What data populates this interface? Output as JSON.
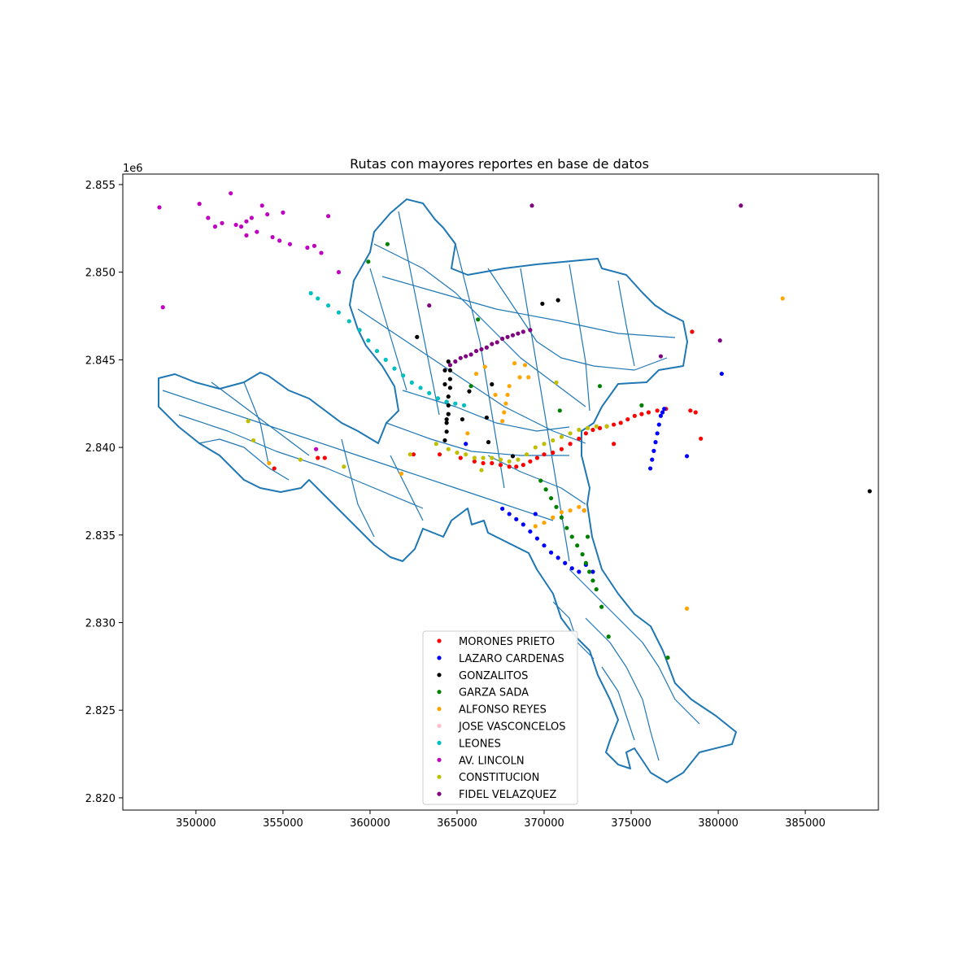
{
  "chart_data": {
    "type": "scatter",
    "title": "Rutas con mayores reportes en base de datos",
    "xlabel": "",
    "ylabel": "",
    "y_offset_label": "1e6",
    "xlim": [
      345800,
      389200
    ],
    "ylim": [
      2.8193,
      2.8556
    ],
    "x_ticks": [
      350000,
      355000,
      360000,
      365000,
      370000,
      375000,
      380000,
      385000
    ],
    "x_tick_labels": [
      "350000",
      "355000",
      "360000",
      "365000",
      "370000",
      "375000",
      "380000",
      "385000"
    ],
    "y_ticks": [
      2.82,
      2.825,
      2.83,
      2.835,
      2.84,
      2.845,
      2.85,
      2.855
    ],
    "y_tick_labels": [
      "2.820",
      "2.825",
      "2.830",
      "2.835",
      "2.840",
      "2.845",
      "2.850",
      "2.855"
    ],
    "grid": false,
    "legend_position": "lower center",
    "background_layer": {
      "name": "street network",
      "color": "#1f77b4"
    },
    "series": [
      {
        "name": "MORONES PRIETO",
        "color": "#ff0000",
        "x": [
          354500,
          357000,
          357400,
          362500,
          364000,
          365200,
          366000,
          366500,
          367000,
          367500,
          368000,
          368400,
          368800,
          369200,
          369600,
          370000,
          370500,
          371000,
          371500,
          372000,
          372400,
          372800,
          373200,
          373600,
          374000,
          374400,
          374800,
          375200,
          375600,
          376000,
          376500,
          377000,
          378400,
          378700,
          379000,
          374000,
          378500,
          372300
        ],
        "y": [
          2.8388,
          2.8394,
          2.8394,
          2.8396,
          2.8396,
          2.8394,
          2.8392,
          2.8391,
          2.8391,
          2.839,
          2.8389,
          2.8389,
          2.839,
          2.8392,
          2.8394,
          2.8396,
          2.8397,
          2.8399,
          2.8402,
          2.8405,
          2.8408,
          2.841,
          2.8411,
          2.8412,
          2.8413,
          2.8414,
          2.8416,
          2.8418,
          2.8419,
          2.842,
          2.8421,
          2.8422,
          2.8421,
          2.842,
          2.8405,
          2.8402,
          2.8466,
          2.8364
        ]
      },
      {
        "name": "LAZARO CARDENAS",
        "color": "#0000ff",
        "x": [
          367600,
          368000,
          368400,
          368800,
          369200,
          369600,
          370000,
          370400,
          370800,
          371200,
          371600,
          372000,
          372400,
          372800,
          376100,
          376200,
          376300,
          376400,
          376500,
          376600,
          376700,
          376800,
          376900,
          378200,
          380200,
          369500,
          365500
        ],
        "y": [
          2.8365,
          2.8362,
          2.8359,
          2.8356,
          2.8352,
          2.8348,
          2.8344,
          2.834,
          2.8337,
          2.8334,
          2.8331,
          2.8329,
          2.8333,
          2.8329,
          2.8388,
          2.8393,
          2.8398,
          2.8403,
          2.8408,
          2.8413,
          2.8418,
          2.842,
          2.8422,
          2.8395,
          2.8442,
          2.8362,
          2.8402
        ]
      },
      {
        "name": "GONZALITOS",
        "color": "#000000",
        "x": [
          364300,
          364400,
          364400,
          364500,
          364500,
          364500,
          364600,
          364600,
          364600,
          364500,
          364400,
          364400,
          364300,
          364300,
          365300,
          366700,
          367000,
          365700,
          366800,
          368200,
          369900,
          370800,
          362700,
          388700
        ],
        "y": [
          2.8404,
          2.8409,
          2.8414,
          2.8419,
          2.8424,
          2.8429,
          2.8434,
          2.8439,
          2.8444,
          2.8449,
          2.8426,
          2.8416,
          2.8436,
          2.8444,
          2.8416,
          2.8417,
          2.8436,
          2.8432,
          2.8403,
          2.8395,
          2.8482,
          2.8484,
          2.8463,
          2.8375
        ]
      },
      {
        "name": "GARZA SADA",
        "color": "#008000",
        "x": [
          369800,
          370100,
          370400,
          370700,
          371000,
          371300,
          371600,
          371900,
          372200,
          372400,
          372600,
          372800,
          373000,
          373300,
          373700,
          375600,
          377100,
          370900,
          373200,
          366200,
          361000,
          359900,
          365800,
          372500
        ],
        "y": [
          2.8381,
          2.8376,
          2.8371,
          2.8366,
          2.836,
          2.8354,
          2.8349,
          2.8344,
          2.8339,
          2.8334,
          2.8329,
          2.8324,
          2.8319,
          2.8309,
          2.8292,
          2.8424,
          2.828,
          2.8421,
          2.8435,
          2.8473,
          2.8516,
          2.8506,
          2.8435,
          2.8349
        ]
      },
      {
        "name": "ALFONSO REYES",
        "color": "#ffa500",
        "x": [
          365600,
          366100,
          366600,
          367200,
          367600,
          367700,
          367800,
          367900,
          368000,
          368300,
          368600,
          368900,
          369100,
          369500,
          370000,
          370500,
          371000,
          371500,
          372000,
          372300,
          378200,
          383700,
          354200,
          361800
        ],
        "y": [
          2.8408,
          2.8442,
          2.8446,
          2.843,
          2.8415,
          2.842,
          2.8425,
          2.843,
          2.8435,
          2.8448,
          2.844,
          2.8447,
          2.844,
          2.8355,
          2.8357,
          2.836,
          2.8363,
          2.8364,
          2.8366,
          2.8364,
          2.8308,
          2.8485,
          2.8391,
          2.8385
        ]
      },
      {
        "name": "JOSE VASCONCELOS",
        "color": "#ffc0cb",
        "x": [],
        "y": []
      },
      {
        "name": "LEONES",
        "color": "#00bfbf",
        "x": [
          356600,
          357000,
          357600,
          358200,
          358800,
          359400,
          359900,
          360400,
          360900,
          361400,
          361900,
          362400,
          362900,
          363400,
          363900,
          364400,
          364900,
          365400
        ],
        "y": [
          2.8488,
          2.8485,
          2.8481,
          2.8477,
          2.8472,
          2.8467,
          2.8461,
          2.8455,
          2.845,
          2.8445,
          2.8441,
          2.8437,
          2.8434,
          2.8431,
          2.8428,
          2.8426,
          2.8425,
          2.8424
        ]
      },
      {
        "name": "AV. LINCOLN",
        "color": "#bf00bf",
        "x": [
          347900,
          348100,
          350200,
          350700,
          351100,
          351500,
          352000,
          352300,
          352600,
          352900,
          353200,
          353500,
          353800,
          354100,
          354400,
          354800,
          355400,
          356400,
          356800,
          357200,
          357600,
          358200,
          352900,
          355000,
          356900
        ],
        "y": [
          2.8537,
          2.848,
          2.8539,
          2.8531,
          2.8526,
          2.8528,
          2.8545,
          2.8527,
          2.8526,
          2.8529,
          2.8531,
          2.8523,
          2.8538,
          2.8533,
          2.852,
          2.8518,
          2.8516,
          2.8514,
          2.8515,
          2.8511,
          2.8532,
          2.85,
          2.8521,
          2.8534,
          2.8399
        ]
      },
      {
        "name": "CONSTITUCION",
        "color": "#bfbf00",
        "x": [
          356000,
          358500,
          362300,
          363800,
          364500,
          365000,
          365500,
          366000,
          366500,
          367000,
          367500,
          368000,
          368500,
          369000,
          369500,
          370000,
          370500,
          371000,
          371500,
          372000,
          372500,
          373000,
          373600,
          353000,
          353300,
          366400,
          370700
        ],
        "y": [
          2.8393,
          2.8389,
          2.8396,
          2.8402,
          2.8399,
          2.8397,
          2.8396,
          2.8394,
          2.8394,
          2.8394,
          2.8393,
          2.8392,
          2.8393,
          2.8396,
          2.84,
          2.8402,
          2.8404,
          2.8406,
          2.8408,
          2.841,
          2.8411,
          2.8412,
          2.8412,
          2.8415,
          2.8404,
          2.8387,
          2.8437
        ]
      },
      {
        "name": "FIDEL VELAZQUEZ",
        "color": "#800080",
        "x": [
          364600,
          364900,
          365200,
          365500,
          365800,
          366100,
          366400,
          366700,
          367000,
          367300,
          367600,
          367900,
          368200,
          368500,
          368800,
          369200,
          363400,
          369300,
          380100,
          381300,
          376700
        ],
        "y": [
          2.8447,
          2.8449,
          2.8451,
          2.8452,
          2.8453,
          2.8455,
          2.8456,
          2.8457,
          2.8459,
          2.846,
          2.8462,
          2.8463,
          2.8464,
          2.8465,
          2.8466,
          2.8467,
          2.8481,
          2.8538,
          2.8461,
          2.8538,
          2.8452
        ]
      }
    ]
  }
}
